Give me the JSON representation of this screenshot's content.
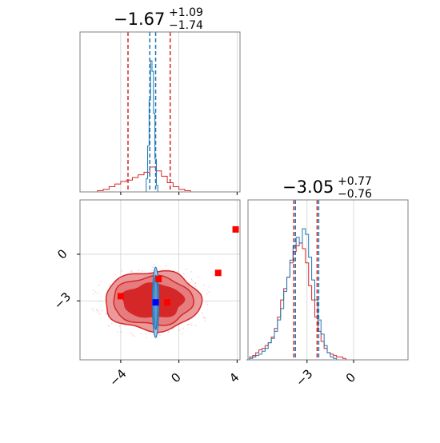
{
  "chart_data": {
    "type": "corner",
    "parameters": [
      {
        "median_text": "−1.67",
        "plus_text": "+1.09",
        "minus_text": "−1.74",
        "range": [
          -6.8,
          4.2
        ],
        "ticks": [
          -4,
          0,
          4
        ],
        "tick_labels": [
          "−4",
          "0",
          "4"
        ]
      },
      {
        "median_text": "−3.05",
        "plus_text": "+0.77",
        "minus_text": "−0.76",
        "range": [
          -6.8,
          3.5
        ],
        "ticks": [
          -3,
          0
        ],
        "tick_labels": [
          "−3",
          "0"
        ]
      }
    ],
    "series": [
      {
        "color": "#d62728",
        "quantiles_p1": [
          -3.5,
          -0.6
        ],
        "quantiles_p2": [
          -3.8,
          -2.3
        ],
        "hist_p1": {
          "x": [
            -5.8,
            -5.4,
            -5.0,
            -4.6,
            -4.2,
            -3.8,
            -3.4,
            -3.0,
            -2.6,
            -2.2,
            -1.8,
            -1.4,
            -1.0,
            -0.6,
            -0.2,
            0.2,
            0.6,
            1.0
          ],
          "y": [
            0.0,
            0.01,
            0.02,
            0.04,
            0.06,
            0.08,
            0.09,
            0.11,
            0.13,
            0.15,
            0.19,
            0.16,
            0.12,
            0.07,
            0.04,
            0.02,
            0.01,
            0.0
          ]
        },
        "hist_p2": {
          "x": [
            -6.8,
            -6.6,
            -6.4,
            -6.2,
            -6.0,
            -5.8,
            -5.6,
            -5.4,
            -5.2,
            -5.0,
            -4.8,
            -4.6,
            -4.4,
            -4.2,
            -4.0,
            -3.8,
            -3.6,
            -3.4,
            -3.2,
            -3.0,
            -2.8,
            -2.6,
            -2.4,
            -2.2,
            -2.0,
            -1.8,
            -1.6,
            -1.4,
            -1.2,
            -1.0,
            -0.8,
            -0.6,
            -0.4
          ],
          "y": [
            0.0,
            0.02,
            0.03,
            0.05,
            0.07,
            0.08,
            0.1,
            0.12,
            0.16,
            0.22,
            0.3,
            0.42,
            0.5,
            0.58,
            0.68,
            0.76,
            0.8,
            0.82,
            0.78,
            0.68,
            0.52,
            0.42,
            0.3,
            0.2,
            0.13,
            0.08,
            0.05,
            0.04,
            0.03,
            0.02,
            0.02,
            0.01,
            0.0
          ]
        },
        "points": [
          [
            -1.4,
            -1.6
          ],
          [
            2.7,
            -1.2
          ],
          [
            3.9,
            1.6
          ],
          [
            -4.0,
            -2.7
          ],
          [
            -0.8,
            -3.1
          ]
        ],
        "center": [
          -1.8,
          -3.0
        ]
      },
      {
        "color": "#1f77b4",
        "quantiles_p1": [
          -2.0,
          -1.6
        ],
        "quantiles_p2": [
          -3.8,
          -2.3
        ],
        "hist_p1": {
          "x": [
            -2.3,
            -2.2,
            -2.1,
            -2.0,
            -1.9,
            -1.8,
            -1.7,
            -1.6,
            -1.5,
            -1.4
          ],
          "y": [
            0.0,
            0.1,
            0.35,
            0.7,
            1.0,
            0.92,
            0.6,
            0.25,
            0.05,
            0.0
          ]
        },
        "hist_p2": {
          "x": [
            -6.8,
            -6.6,
            -6.4,
            -6.2,
            -6.0,
            -5.8,
            -5.6,
            -5.4,
            -5.2,
            -5.0,
            -4.8,
            -4.6,
            -4.4,
            -4.2,
            -4.0,
            -3.8,
            -3.6,
            -3.4,
            -3.2,
            -3.0,
            -2.8,
            -2.6,
            -2.4,
            -2.2,
            -2.0,
            -1.8,
            -1.6,
            -1.4,
            -1.2,
            -1.0,
            -0.8,
            -0.6,
            -0.4
          ],
          "y": [
            0.0,
            0.01,
            0.02,
            0.03,
            0.04,
            0.06,
            0.08,
            0.12,
            0.15,
            0.2,
            0.28,
            0.36,
            0.48,
            0.58,
            0.7,
            0.8,
            0.86,
            0.82,
            0.92,
            0.88,
            0.72,
            0.56,
            0.42,
            0.28,
            0.18,
            0.1,
            0.05,
            0.02,
            0.01,
            0.0,
            0.0,
            0.0,
            0.0
          ]
        },
        "points": [
          [
            -1.6,
            -3.1
          ]
        ],
        "center": [
          -1.6,
          -3.1
        ]
      }
    ],
    "grid": true
  }
}
